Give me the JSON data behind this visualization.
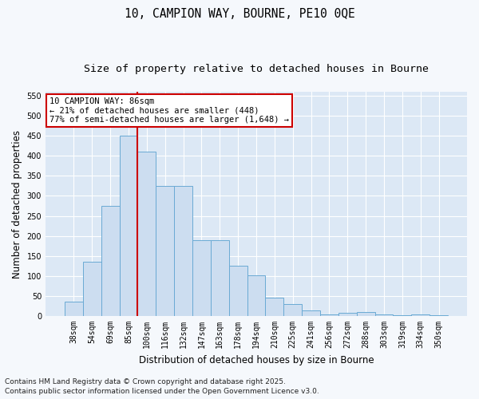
{
  "title_line1": "10, CAMPION WAY, BOURNE, PE10 0QE",
  "title_line2": "Size of property relative to detached houses in Bourne",
  "xlabel": "Distribution of detached houses by size in Bourne",
  "ylabel": "Number of detached properties",
  "categories": [
    "38sqm",
    "54sqm",
    "69sqm",
    "85sqm",
    "100sqm",
    "116sqm",
    "132sqm",
    "147sqm",
    "163sqm",
    "178sqm",
    "194sqm",
    "210sqm",
    "225sqm",
    "241sqm",
    "256sqm",
    "272sqm",
    "288sqm",
    "303sqm",
    "319sqm",
    "334sqm",
    "350sqm"
  ],
  "values": [
    35,
    135,
    275,
    450,
    410,
    325,
    325,
    190,
    190,
    125,
    102,
    46,
    30,
    15,
    5,
    8,
    10,
    5,
    3,
    5,
    3
  ],
  "bar_color": "#ccddf0",
  "bar_edge_color": "#6aaad4",
  "red_line_index": 3,
  "annotation_text": "10 CAMPION WAY: 86sqm\n← 21% of detached houses are smaller (448)\n77% of semi-detached houses are larger (1,648) →",
  "annotation_box_color": "#ffffff",
  "annotation_box_edge": "#cc0000",
  "ylim": [
    0,
    560
  ],
  "yticks": [
    0,
    50,
    100,
    150,
    200,
    250,
    300,
    350,
    400,
    450,
    500,
    550
  ],
  "background_color": "#dce8f5",
  "fig_background_color": "#f5f8fc",
  "grid_color": "#ffffff",
  "footer_line1": "Contains HM Land Registry data © Crown copyright and database right 2025.",
  "footer_line2": "Contains public sector information licensed under the Open Government Licence v3.0.",
  "title_fontsize": 10.5,
  "subtitle_fontsize": 9.5,
  "axis_label_fontsize": 8.5,
  "tick_fontsize": 7,
  "annotation_fontsize": 7.5,
  "footer_fontsize": 6.5
}
